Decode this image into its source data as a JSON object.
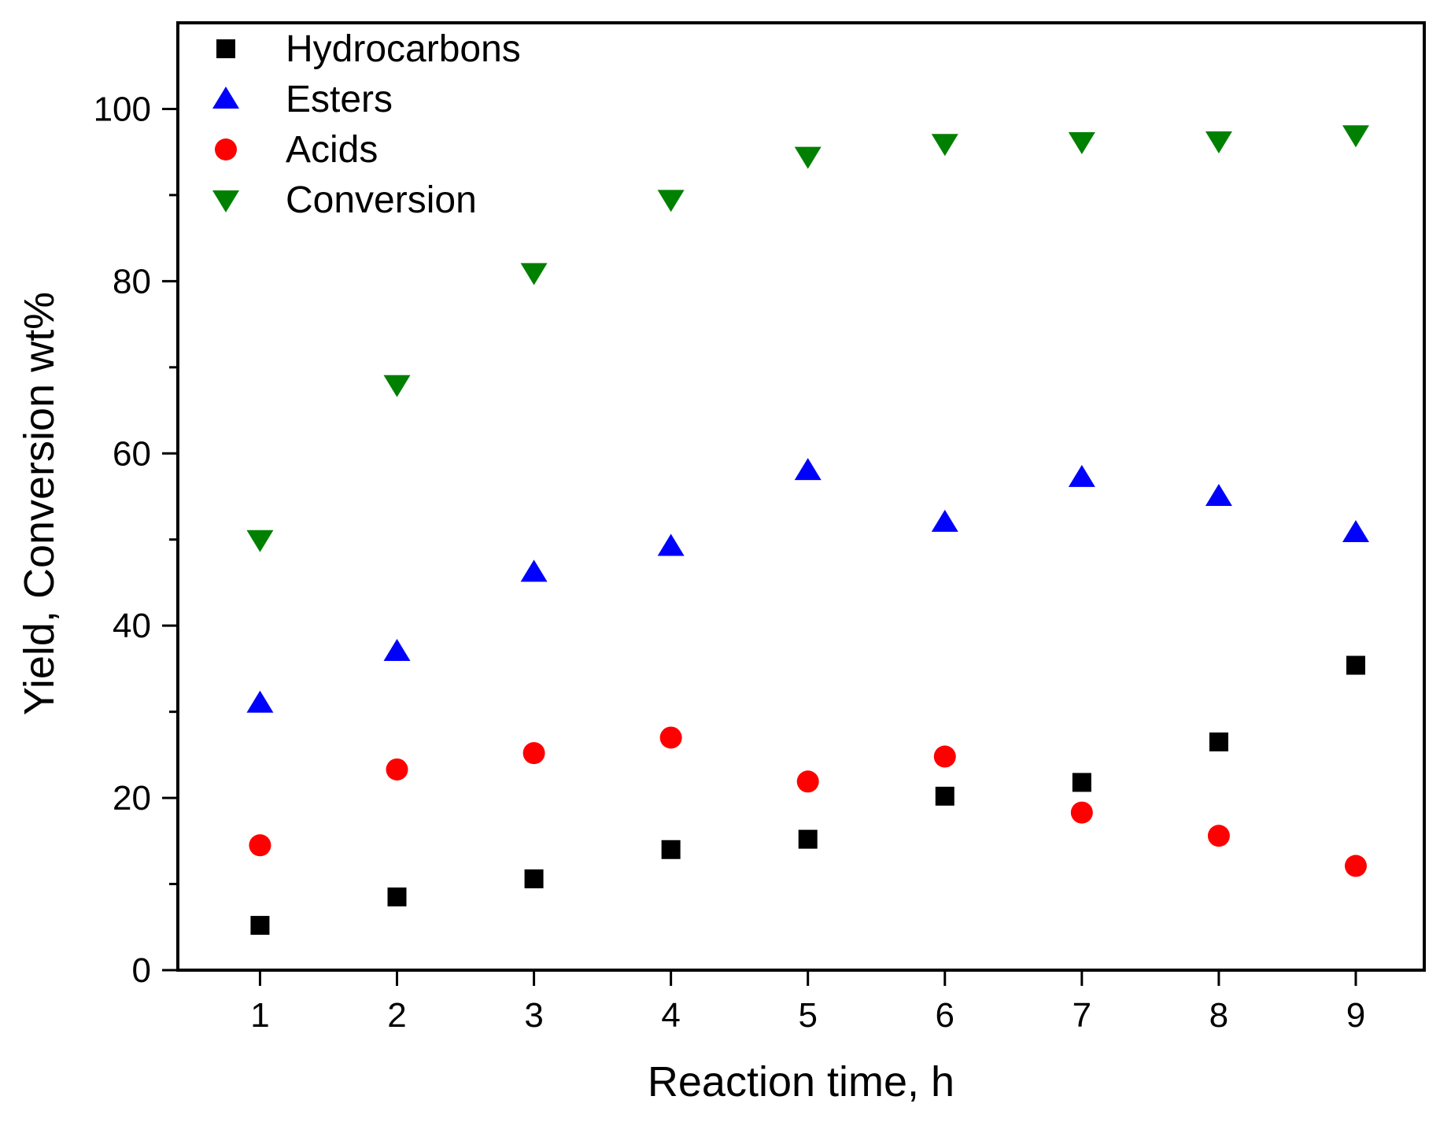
{
  "chart_data": {
    "type": "scatter",
    "title": "",
    "xlabel": "Reaction time, h",
    "ylabel": "Yield, Conversion wt%",
    "x": [
      1,
      2,
      3,
      4,
      5,
      6,
      7,
      8,
      9
    ],
    "xlim": [
      0.4,
      9.5
    ],
    "ylim": [
      0,
      110
    ],
    "xticks": [
      "1",
      "2",
      "3",
      "4",
      "5",
      "6",
      "7",
      "8",
      "9"
    ],
    "yticks": [
      "0",
      "20",
      "40",
      "60",
      "80",
      "100"
    ],
    "grid": false,
    "legend_position": "top-left",
    "series": [
      {
        "name": "Hydrocarbons",
        "marker": "square",
        "color": "#000000",
        "values": [
          5.2,
          8.5,
          10.6,
          14.0,
          15.2,
          20.2,
          21.8,
          26.5,
          35.4
        ]
      },
      {
        "name": "Esters",
        "marker": "triangle-up",
        "color": "#0000ff",
        "values": [
          31.0,
          37.0,
          46.2,
          49.2,
          58.0,
          52.0,
          57.2,
          55.0,
          50.8
        ]
      },
      {
        "name": "Acids",
        "marker": "circle",
        "color": "#ff0000",
        "values": [
          14.5,
          23.3,
          25.2,
          27.0,
          21.9,
          24.8,
          18.3,
          15.6,
          12.1
        ]
      },
      {
        "name": "Conversion",
        "marker": "triangle-down",
        "color": "#008000",
        "values": [
          50.0,
          68.0,
          81.0,
          89.5,
          94.5,
          96.0,
          96.2,
          96.3,
          97.0
        ]
      }
    ]
  }
}
